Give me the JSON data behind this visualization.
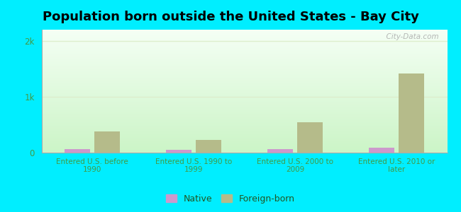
{
  "title": "Population born outside the United States - Bay City",
  "categories": [
    "Entered U.S. before\n1990",
    "Entered U.S. 1990 to\n1999",
    "Entered U.S. 2000 to\n2009",
    "Entered U.S. 2010 or\nlater"
  ],
  "native_values": [
    65,
    45,
    65,
    90
  ],
  "foreign_values": [
    380,
    230,
    550,
    1420
  ],
  "native_color": "#cc99cc",
  "foreign_color": "#b5bb8a",
  "background_color": "#00eeff",
  "plot_bg_top": "#f0fdf0",
  "plot_bg_bottom": "#c8f0c0",
  "ylim": [
    0,
    2200
  ],
  "yticks": [
    0,
    1000,
    2000
  ],
  "ytick_labels": [
    "0",
    "1k",
    "2k"
  ],
  "bar_width": 0.25,
  "legend_native": "Native",
  "legend_foreign": "Foreign-born",
  "title_fontsize": 13,
  "watermark": "  City-Data.com",
  "tick_color": "#449944",
  "grid_color": "#ddeecc"
}
